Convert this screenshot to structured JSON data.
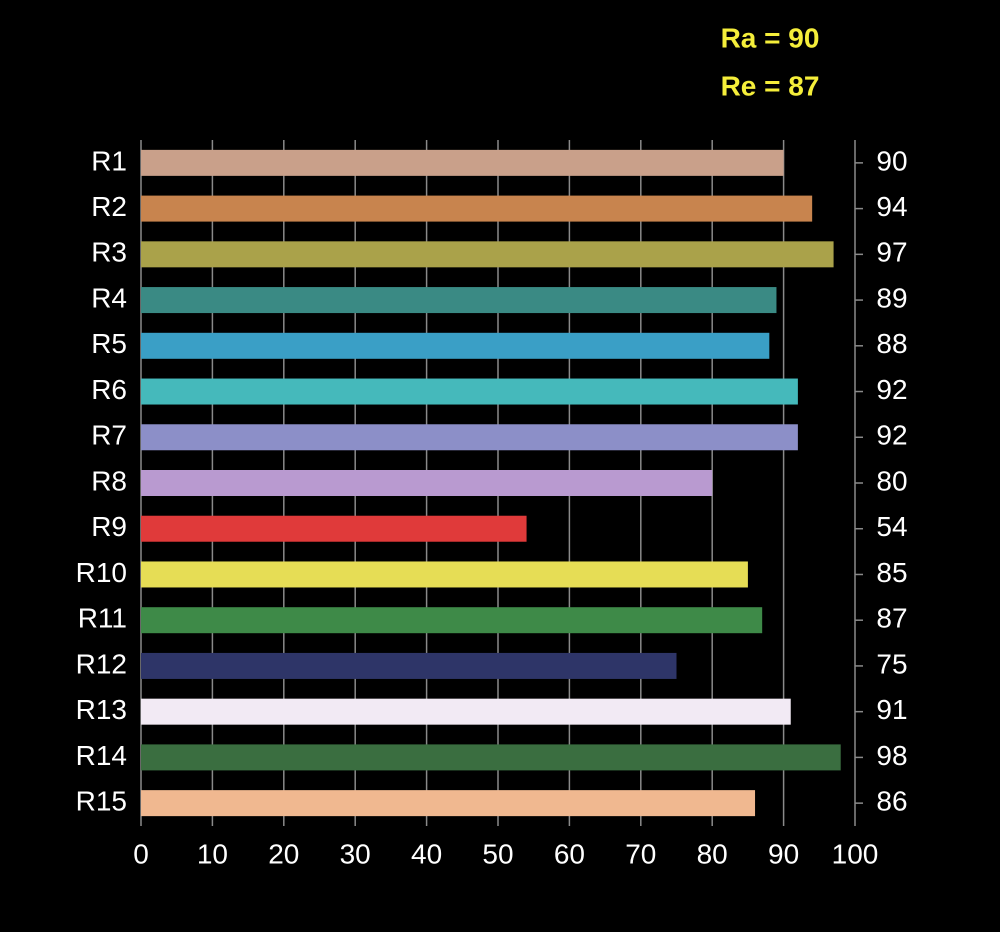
{
  "chart_data": {
    "type": "bar",
    "orientation": "horizontal",
    "annotations": [
      "Ra = 90",
      "Re = 87"
    ],
    "categories": [
      "R1",
      "R2",
      "R3",
      "R4",
      "R5",
      "R6",
      "R7",
      "R8",
      "R9",
      "R10",
      "R11",
      "R12",
      "R13",
      "R14",
      "R15"
    ],
    "values": [
      90,
      94,
      97,
      89,
      88,
      92,
      92,
      80,
      54,
      85,
      87,
      75,
      91,
      98,
      86
    ],
    "colors": [
      "#c9a08a",
      "#c8844e",
      "#aaa24a",
      "#3a8a84",
      "#3a9fc6",
      "#45b9bb",
      "#8c8fc8",
      "#b99ad0",
      "#e03a3a",
      "#e6dd55",
      "#3e8a48",
      "#2e3568",
      "#f2eaf4",
      "#3a6e40",
      "#f0b890"
    ],
    "xlim": [
      0,
      100
    ],
    "xticks": [
      0,
      10,
      20,
      30,
      40,
      50,
      60,
      70,
      80,
      90,
      100
    ],
    "grid": true
  }
}
